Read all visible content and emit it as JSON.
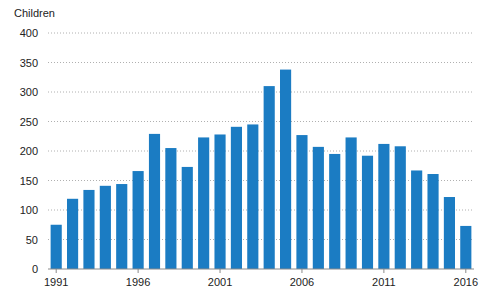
{
  "chart_data": {
    "type": "bar",
    "y_label": "Children",
    "categories": [
      "1991",
      null,
      null,
      null,
      null,
      "1996",
      null,
      null,
      null,
      null,
      "2001",
      null,
      null,
      null,
      null,
      "2006",
      null,
      null,
      null,
      null,
      "2011",
      null,
      null,
      null,
      null,
      "2016"
    ],
    "values": [
      75,
      119,
      134,
      141,
      144,
      166,
      229,
      205,
      173,
      223,
      228,
      241,
      245,
      310,
      338,
      227,
      207,
      195,
      223,
      192,
      212,
      208,
      167,
      161,
      122,
      73
    ],
    "color": "#1b7cc3",
    "ylim": [
      0,
      400
    ],
    "yticks": [
      0,
      50,
      100,
      150,
      200,
      250,
      300,
      350,
      400
    ],
    "grid": true
  }
}
